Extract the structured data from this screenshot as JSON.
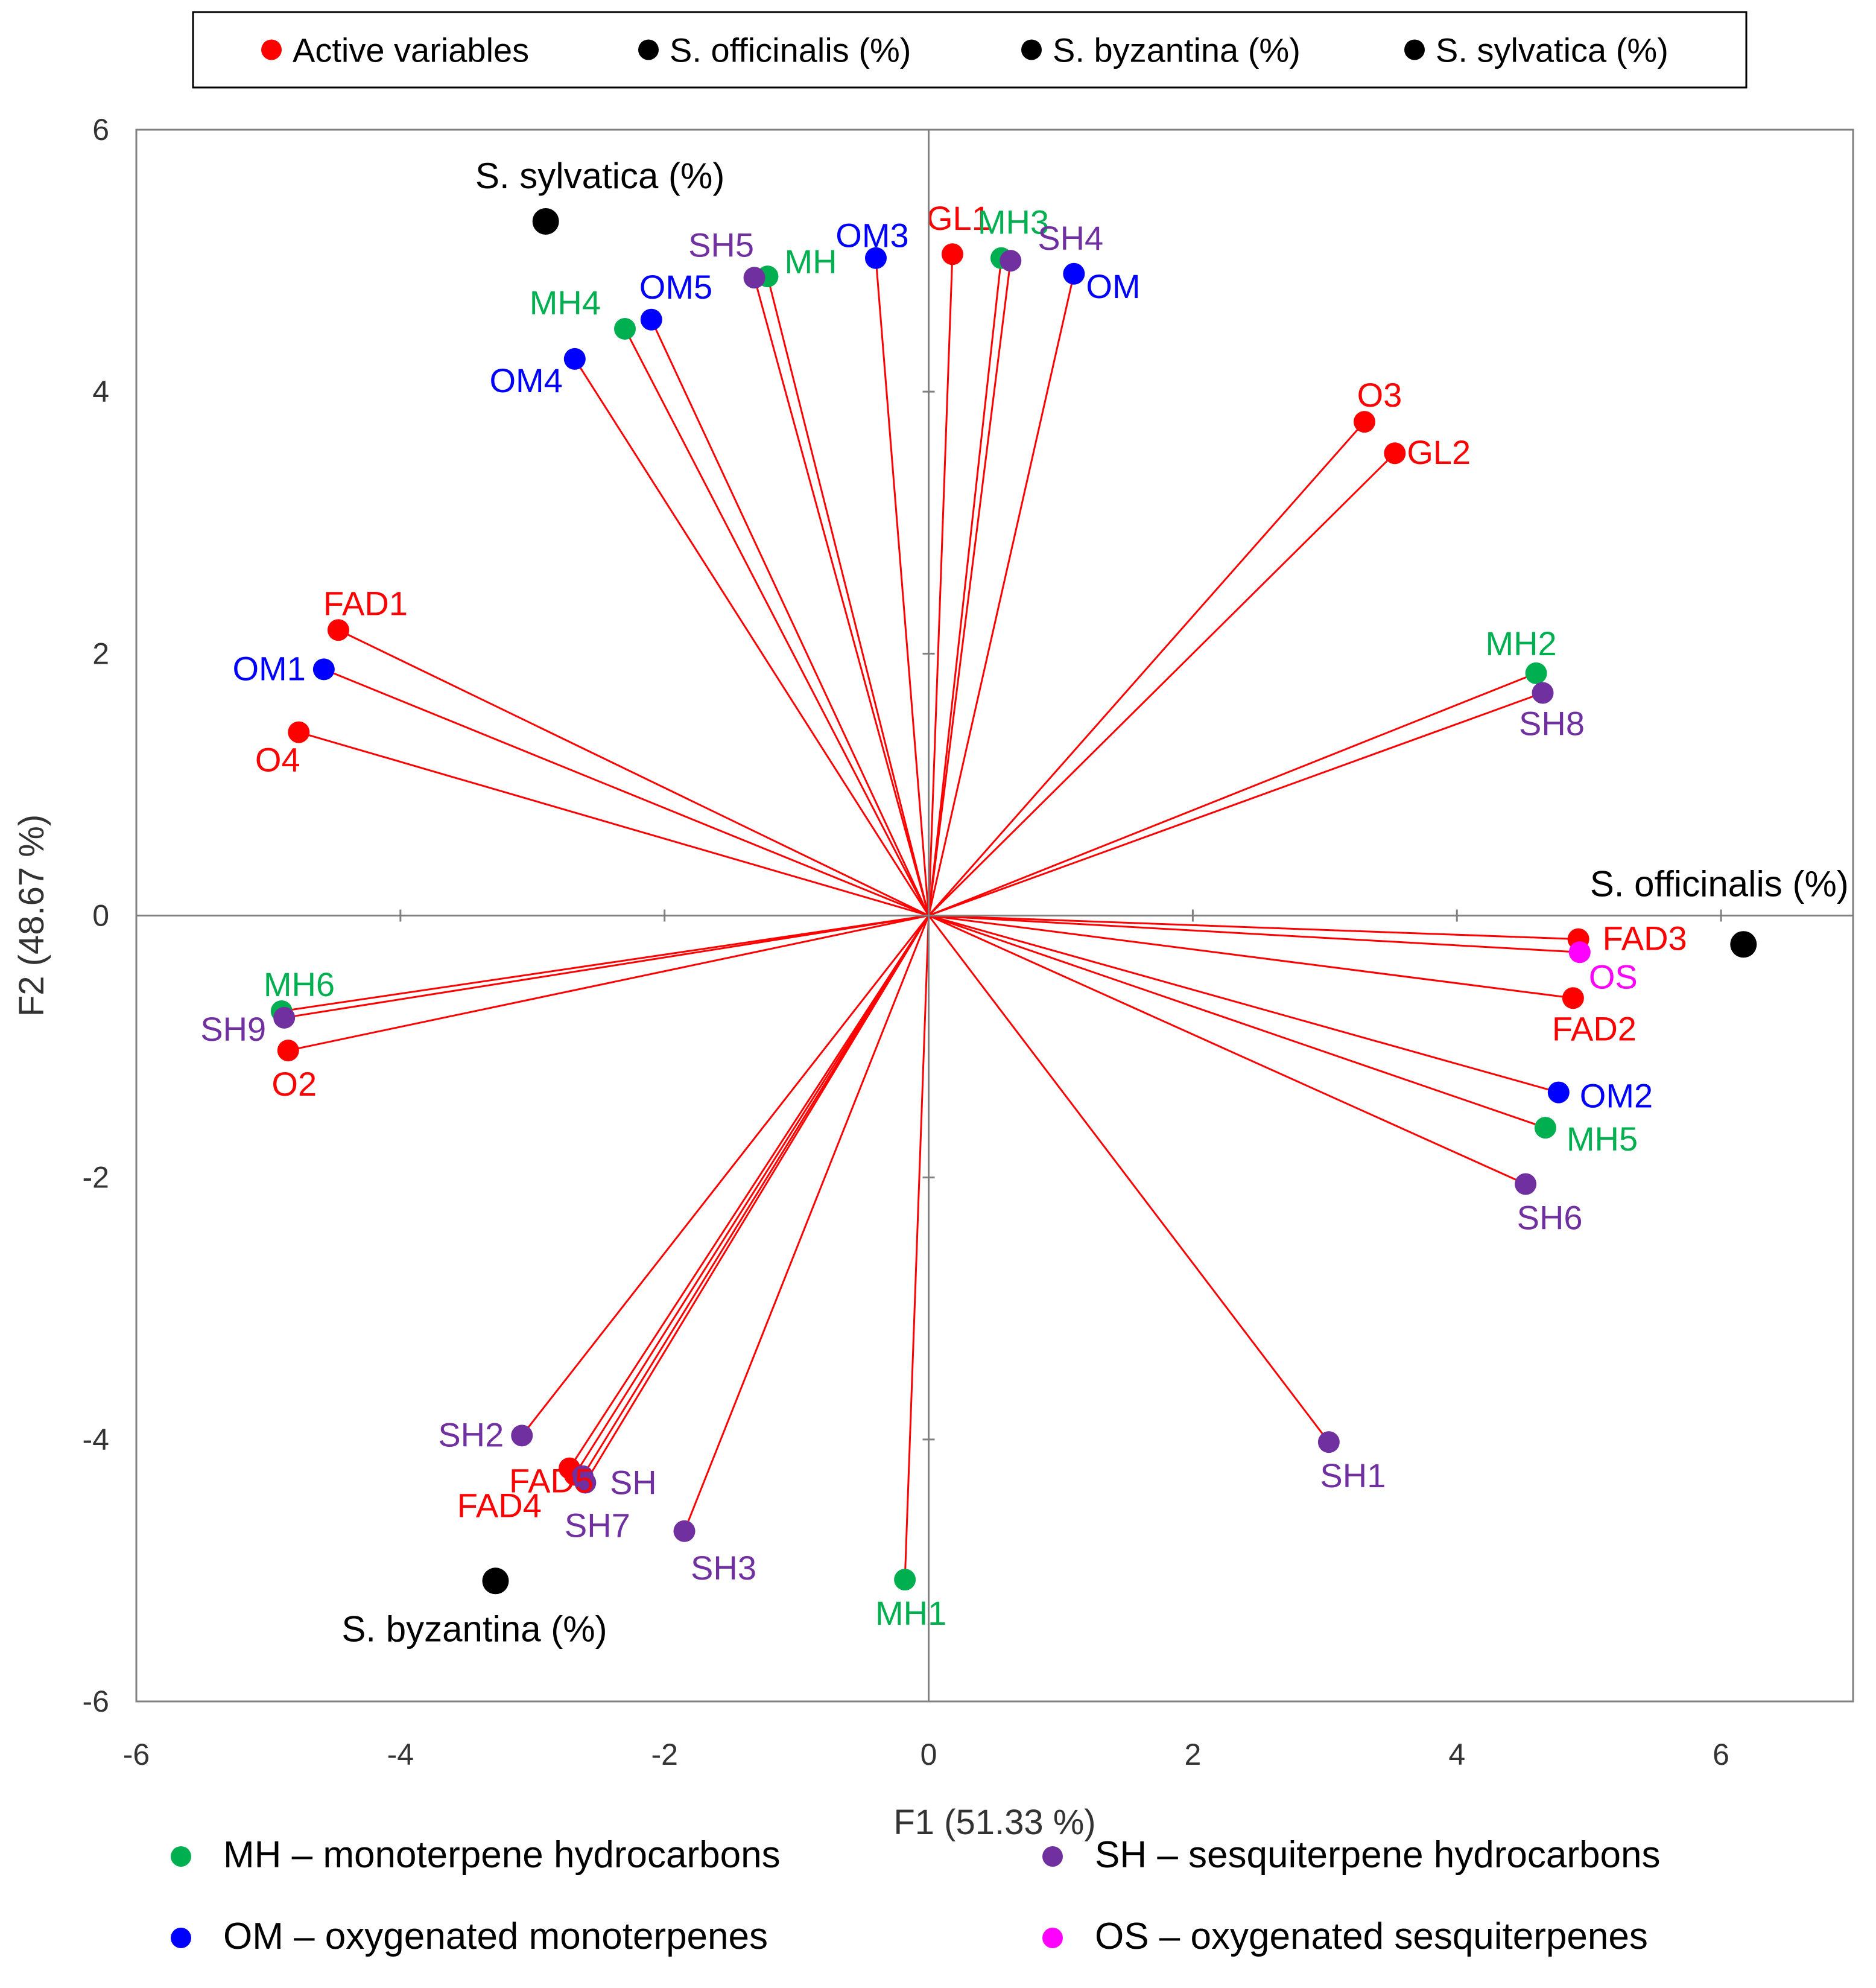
{
  "chart_data": {
    "type": "scatter",
    "subtype": "pca-biplot",
    "title": "",
    "xlabel": "F1 (51.33 %)",
    "ylabel": "F2 (48.67 %)",
    "xlim": [
      -6,
      7
    ],
    "ylim": [
      -6,
      6
    ],
    "xticks": [
      -6,
      -4,
      -2,
      0,
      2,
      4,
      6
    ],
    "yticks": [
      -6,
      -4,
      -2,
      0,
      2,
      4,
      6
    ],
    "grid": false,
    "legend_position": "top",
    "legend": [
      {
        "label": "Active variables",
        "color": "#ff0000"
      },
      {
        "label": "S. officinalis (%)",
        "color": "#000000"
      },
      {
        "label": "S. byzantina  (%)",
        "color": "#000000"
      },
      {
        "label": "S. sylvatica (%)",
        "color": "#000000"
      }
    ],
    "group_colors": {
      "MH": "#00b050",
      "OM": "#0000ff",
      "SH": "#7030a0",
      "OS": "#ff00ff",
      "other": "#ff0000",
      "species": "#000000"
    },
    "variables": [
      {
        "label": "GL1",
        "x": 0.18,
        "y": 5.05,
        "group": "other"
      },
      {
        "label": "MH3",
        "x": 0.55,
        "y": 5.02,
        "group": "MH"
      },
      {
        "label": "SH4",
        "x": 0.62,
        "y": 5.0,
        "group": "SH"
      },
      {
        "label": "OM",
        "x": 1.1,
        "y": 4.9,
        "group": "OM"
      },
      {
        "label": "OM3",
        "x": -0.4,
        "y": 5.02,
        "group": "OM"
      },
      {
        "label": "MH",
        "x": -1.22,
        "y": 4.88,
        "group": "MH"
      },
      {
        "label": "SH5",
        "x": -1.32,
        "y": 4.87,
        "group": "SH"
      },
      {
        "label": "OM5",
        "x": -2.1,
        "y": 4.55,
        "group": "OM"
      },
      {
        "label": "MH4",
        "x": -2.3,
        "y": 4.48,
        "group": "MH"
      },
      {
        "label": "OM4",
        "x": -2.68,
        "y": 4.25,
        "group": "OM"
      },
      {
        "label": "O3",
        "x": 3.3,
        "y": 3.77,
        "group": "other"
      },
      {
        "label": "GL2",
        "x": 3.53,
        "y": 3.53,
        "group": "other"
      },
      {
        "label": "FAD1",
        "x": -4.47,
        "y": 2.18,
        "group": "other"
      },
      {
        "label": "OM1",
        "x": -4.58,
        "y": 1.88,
        "group": "OM"
      },
      {
        "label": "O4",
        "x": -4.77,
        "y": 1.4,
        "group": "other"
      },
      {
        "label": "MH2",
        "x": 4.6,
        "y": 1.85,
        "group": "MH"
      },
      {
        "label": "SH8",
        "x": 4.65,
        "y": 1.7,
        "group": "SH"
      },
      {
        "label": "FAD3",
        "x": 4.92,
        "y": -0.18,
        "group": "other"
      },
      {
        "label": "OS",
        "x": 4.93,
        "y": -0.28,
        "group": "OS"
      },
      {
        "label": "FAD2",
        "x": 4.88,
        "y": -0.63,
        "group": "other"
      },
      {
        "label": "OM2",
        "x": 4.77,
        "y": -1.35,
        "group": "OM"
      },
      {
        "label": "MH5",
        "x": 4.67,
        "y": -1.62,
        "group": "MH"
      },
      {
        "label": "SH6",
        "x": 4.52,
        "y": -2.05,
        "group": "SH"
      },
      {
        "label": "MH6",
        "x": -4.9,
        "y": -0.73,
        "group": "MH"
      },
      {
        "label": "SH9",
        "x": -4.88,
        "y": -0.78,
        "group": "SH"
      },
      {
        "label": "O2",
        "x": -4.85,
        "y": -1.03,
        "group": "other"
      },
      {
        "label": "SH1",
        "x": 3.03,
        "y": -4.02,
        "group": "SH"
      },
      {
        "label": "SH2",
        "x": -3.08,
        "y": -3.97,
        "group": "SH"
      },
      {
        "label": "FAD5",
        "x": -2.72,
        "y": -4.22,
        "group": "other"
      },
      {
        "label": "FAD4",
        "x": -2.68,
        "y": -4.27,
        "group": "other"
      },
      {
        "label": "SH",
        "x": -2.62,
        "y": -4.28,
        "group": "SH"
      },
      {
        "label": "SH7",
        "x": -2.6,
        "y": -4.33,
        "group": "SH"
      },
      {
        "label": "SH3",
        "x": -1.85,
        "y": -4.7,
        "group": "SH"
      },
      {
        "label": "MH1",
        "x": -0.18,
        "y": -5.07,
        "group": "MH"
      }
    ],
    "observations": [
      {
        "label": "S. sylvatica (%)",
        "x": -2.9,
        "y": 5.3
      },
      {
        "label": "S. officinalis (%)",
        "x": 6.17,
        "y": -0.22
      },
      {
        "label": "S. byzantina  (%)",
        "x": -3.28,
        "y": -5.08
      }
    ],
    "group_legend": [
      {
        "label": "MH – monoterpene hydrocarbons",
        "color": "#00b050"
      },
      {
        "label": "SH – sesquiterpene hydrocarbons",
        "color": "#7030a0"
      },
      {
        "label": "OM – oxygenated monoterpenes",
        "color": "#0000ff"
      },
      {
        "label": "OS – oxygenated sesquiterpenes",
        "color": "#ff00ff"
      }
    ]
  }
}
